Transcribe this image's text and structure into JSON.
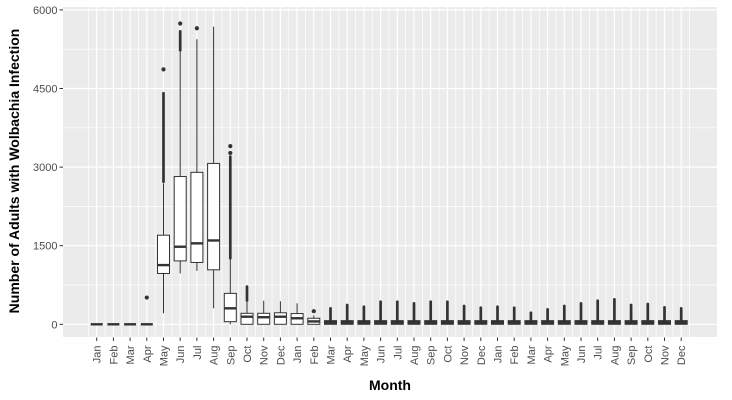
{
  "figure": {
    "background": "#FFFFFF",
    "panel_bg": "#EBEBEB",
    "grid_color": "#FFFFFF",
    "box_color": "#333333",
    "tick_text_color": "#4D4D4D",
    "title_color": "#000000"
  },
  "chart_data": {
    "type": "boxplot",
    "title": "",
    "xlabel": "Month",
    "ylabel": "Number of Adults with Wolbachia Infection",
    "ylim": [
      0,
      6000
    ],
    "y_ticks": [
      0,
      1500,
      3000,
      4500,
      6000
    ],
    "y_minor_ticks": [
      750,
      2250,
      3750,
      5250
    ],
    "grid": true,
    "legend": "none",
    "categories": [
      "Jan",
      "Feb",
      "Mar",
      "Apr",
      "May",
      "Jun",
      "Jul",
      "Aug",
      "Sep",
      "Oct",
      "Nov",
      "Dec",
      "Jan",
      "Feb",
      "Mar",
      "Apr",
      "May",
      "Jun",
      "Jul",
      "Aug",
      "Sep",
      "Oct",
      "Nov",
      "Dec",
      "Jan",
      "Feb",
      "Mar",
      "Apr",
      "May",
      "Jun",
      "Jul",
      "Aug",
      "Sep",
      "Oct",
      "Nov",
      "Dec"
    ],
    "boxes": [
      {
        "label": "Jan",
        "q1": 0,
        "med": 0,
        "q3": 0,
        "lo": 0,
        "hi": 0,
        "streak": null,
        "dots": []
      },
      {
        "label": "Feb",
        "q1": 0,
        "med": 0,
        "q3": 0,
        "lo": 0,
        "hi": 0,
        "streak": null,
        "dots": []
      },
      {
        "label": "Mar",
        "q1": 0,
        "med": 0,
        "q3": 0,
        "lo": 0,
        "hi": 0,
        "streak": null,
        "dots": []
      },
      {
        "label": "Apr",
        "q1": 0,
        "med": 0,
        "q3": 0,
        "lo": 0,
        "hi": 0,
        "streak": null,
        "dots": [
          510
        ]
      },
      {
        "label": "May",
        "q1": 970,
        "med": 1130,
        "q3": 1700,
        "lo": 210,
        "hi": 2690,
        "streak": [
          2720,
          4410
        ],
        "dots": [
          4865
        ]
      },
      {
        "label": "Jun",
        "q1": 1210,
        "med": 1480,
        "q3": 2820,
        "lo": 970,
        "hi": 5420,
        "streak": [
          5230,
          5590
        ],
        "dots": [
          5740
        ]
      },
      {
        "label": "Jul",
        "q1": 1180,
        "med": 1545,
        "q3": 2900,
        "lo": 1020,
        "hi": 5440,
        "streak": null,
        "dots": [
          5650
        ]
      },
      {
        "label": "Aug",
        "q1": 1040,
        "med": 1600,
        "q3": 3070,
        "lo": 305,
        "hi": 5680,
        "streak": null,
        "dots": []
      },
      {
        "label": "Sep",
        "q1": 50,
        "med": 305,
        "q3": 590,
        "lo": 0,
        "hi": 1260,
        "streak": [
          1260,
          3200
        ],
        "dots": [
          3270,
          3400
        ]
      },
      {
        "label": "Oct",
        "q1": 0,
        "med": 145,
        "q3": 210,
        "lo": 0,
        "hi": 430,
        "streak": [
          455,
          720
        ],
        "dots": []
      },
      {
        "label": "Nov",
        "q1": 0,
        "med": 135,
        "q3": 210,
        "lo": 0,
        "hi": 450,
        "streak": null,
        "dots": []
      },
      {
        "label": "Dec",
        "q1": 0,
        "med": 145,
        "q3": 220,
        "lo": 0,
        "hi": 440,
        "streak": null,
        "dots": []
      },
      {
        "label": "Jan",
        "q1": 0,
        "med": 115,
        "q3": 205,
        "lo": 0,
        "hi": 400,
        "streak": null,
        "dots": []
      },
      {
        "label": "Feb",
        "q1": 0,
        "med": 55,
        "q3": 115,
        "lo": 0,
        "hi": 170,
        "streak": null,
        "dots": [
          250
        ]
      },
      {
        "label": "Mar",
        "q1": 0,
        "med": 35,
        "q3": 70,
        "lo": 0,
        "hi": 70,
        "streak": [
          70,
          305
        ],
        "dots": []
      },
      {
        "label": "Apr",
        "q1": 0,
        "med": 35,
        "q3": 70,
        "lo": 0,
        "hi": 70,
        "streak": [
          70,
          368
        ],
        "dots": []
      },
      {
        "label": "May",
        "q1": 0,
        "med": 35,
        "q3": 70,
        "lo": 0,
        "hi": 70,
        "streak": [
          70,
          336
        ],
        "dots": []
      },
      {
        "label": "Jun",
        "q1": 0,
        "med": 35,
        "q3": 70,
        "lo": 0,
        "hi": 70,
        "streak": [
          70,
          431
        ],
        "dots": []
      },
      {
        "label": "Jul",
        "q1": 0,
        "med": 35,
        "q3": 70,
        "lo": 0,
        "hi": 70,
        "streak": [
          70,
          431
        ],
        "dots": []
      },
      {
        "label": "Aug",
        "q1": 0,
        "med": 35,
        "q3": 70,
        "lo": 0,
        "hi": 70,
        "streak": [
          70,
          400
        ],
        "dots": []
      },
      {
        "label": "Sep",
        "q1": 0,
        "med": 35,
        "q3": 70,
        "lo": 0,
        "hi": 70,
        "streak": [
          70,
          431
        ],
        "dots": []
      },
      {
        "label": "Oct",
        "q1": 0,
        "med": 35,
        "q3": 70,
        "lo": 0,
        "hi": 70,
        "streak": [
          70,
          431
        ],
        "dots": []
      },
      {
        "label": "Nov",
        "q1": 0,
        "med": 35,
        "q3": 70,
        "lo": 0,
        "hi": 70,
        "streak": [
          70,
          350
        ],
        "dots": []
      },
      {
        "label": "Dec",
        "q1": 0,
        "med": 35,
        "q3": 70,
        "lo": 0,
        "hi": 70,
        "streak": [
          70,
          317
        ],
        "dots": []
      },
      {
        "label": "Jan",
        "q1": 0,
        "med": 35,
        "q3": 70,
        "lo": 0,
        "hi": 70,
        "streak": [
          70,
          336
        ],
        "dots": []
      },
      {
        "label": "Feb",
        "q1": 0,
        "med": 35,
        "q3": 70,
        "lo": 0,
        "hi": 70,
        "streak": [
          70,
          317
        ],
        "dots": []
      },
      {
        "label": "Mar",
        "q1": 0,
        "med": 35,
        "q3": 70,
        "lo": 0,
        "hi": 70,
        "streak": [
          70,
          221
        ],
        "dots": []
      },
      {
        "label": "Apr",
        "q1": 0,
        "med": 35,
        "q3": 70,
        "lo": 0,
        "hi": 70,
        "streak": [
          70,
          286
        ],
        "dots": []
      },
      {
        "label": "May",
        "q1": 0,
        "med": 35,
        "q3": 70,
        "lo": 0,
        "hi": 70,
        "streak": [
          70,
          349
        ],
        "dots": []
      },
      {
        "label": "Jun",
        "q1": 0,
        "med": 35,
        "q3": 70,
        "lo": 0,
        "hi": 70,
        "streak": [
          70,
          400
        ],
        "dots": []
      },
      {
        "label": "Jul",
        "q1": 0,
        "med": 35,
        "q3": 70,
        "lo": 0,
        "hi": 70,
        "streak": [
          70,
          450
        ],
        "dots": []
      },
      {
        "label": "Aug",
        "q1": 0,
        "med": 35,
        "q3": 70,
        "lo": 0,
        "hi": 70,
        "streak": [
          70,
          477
        ],
        "dots": []
      },
      {
        "label": "Sep",
        "q1": 0,
        "med": 35,
        "q3": 70,
        "lo": 0,
        "hi": 70,
        "streak": [
          70,
          368
        ],
        "dots": []
      },
      {
        "label": "Oct",
        "q1": 0,
        "med": 35,
        "q3": 70,
        "lo": 0,
        "hi": 70,
        "streak": [
          70,
          387
        ],
        "dots": []
      },
      {
        "label": "Nov",
        "q1": 0,
        "med": 35,
        "q3": 70,
        "lo": 0,
        "hi": 70,
        "streak": [
          70,
          324
        ],
        "dots": []
      },
      {
        "label": "Dec",
        "q1": 0,
        "med": 35,
        "q3": 70,
        "lo": 0,
        "hi": 70,
        "streak": [
          70,
          305
        ],
        "dots": []
      }
    ]
  }
}
